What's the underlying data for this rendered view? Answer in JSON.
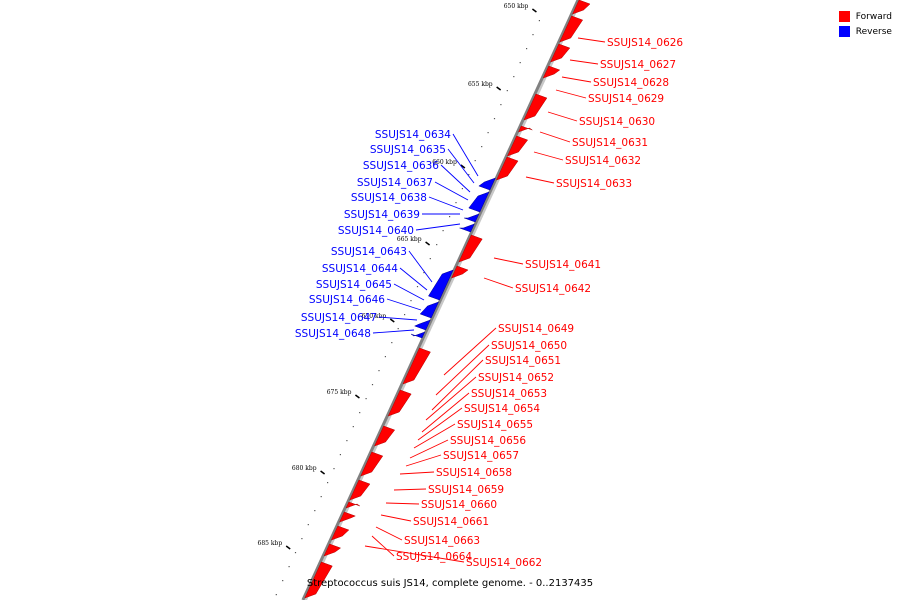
{
  "legend": [
    {
      "label": "Forward",
      "color": "#ff0000"
    },
    {
      "label": "Reverse",
      "color": "#0000ff"
    }
  ],
  "caption": "Streptococcus suis JS14, complete genome. - 0..2137435",
  "colors": {
    "forward": "#ff0000",
    "reverse": "#0000ff",
    "axis": "#808080"
  },
  "scale": {
    "ticks": [
      {
        "kbp": 650,
        "label": "650 kbp"
      },
      {
        "kbp": 655,
        "label": "655 kbp"
      },
      {
        "kbp": 660,
        "label": "660 kbp"
      },
      {
        "kbp": 665,
        "label": "665 kbp"
      },
      {
        "kbp": 670,
        "label": "670 kbp"
      },
      {
        "kbp": 675,
        "label": "675 kbp"
      },
      {
        "kbp": 680,
        "label": "680 kbp"
      },
      {
        "kbp": 685,
        "label": "685 kbp"
      }
    ]
  },
  "genes": [
    {
      "label": "SSUJS14_0626",
      "strand": "forward"
    },
    {
      "label": "SSUJS14_0627",
      "strand": "forward"
    },
    {
      "label": "SSUJS14_0628",
      "strand": "forward"
    },
    {
      "label": "SSUJS14_0629",
      "strand": "forward"
    },
    {
      "label": "SSUJS14_0630",
      "strand": "forward"
    },
    {
      "label": "SSUJS14_0631",
      "strand": "forward"
    },
    {
      "label": "SSUJS14_0632",
      "strand": "forward"
    },
    {
      "label": "SSUJS14_0633",
      "strand": "forward"
    },
    {
      "label": "SSUJS14_0634",
      "strand": "reverse"
    },
    {
      "label": "SSUJS14_0635",
      "strand": "reverse"
    },
    {
      "label": "SSUJS14_0636",
      "strand": "reverse"
    },
    {
      "label": "SSUJS14_0637",
      "strand": "reverse"
    },
    {
      "label": "SSUJS14_0638",
      "strand": "reverse"
    },
    {
      "label": "SSUJS14_0639",
      "strand": "reverse"
    },
    {
      "label": "SSUJS14_0640",
      "strand": "reverse"
    },
    {
      "label": "SSUJS14_0641",
      "strand": "forward"
    },
    {
      "label": "SSUJS14_0642",
      "strand": "forward"
    },
    {
      "label": "SSUJS14_0643",
      "strand": "reverse"
    },
    {
      "label": "SSUJS14_0644",
      "strand": "reverse"
    },
    {
      "label": "SSUJS14_0645",
      "strand": "reverse"
    },
    {
      "label": "SSUJS14_0646",
      "strand": "reverse"
    },
    {
      "label": "SSUJS14_0647",
      "strand": "reverse"
    },
    {
      "label": "SSUJS14_0648",
      "strand": "reverse"
    },
    {
      "label": "SSUJS14_0649",
      "strand": "forward"
    },
    {
      "label": "SSUJS14_0650",
      "strand": "forward"
    },
    {
      "label": "SSUJS14_0651",
      "strand": "forward"
    },
    {
      "label": "SSUJS14_0652",
      "strand": "forward"
    },
    {
      "label": "SSUJS14_0653",
      "strand": "forward"
    },
    {
      "label": "SSUJS14_0654",
      "strand": "forward"
    },
    {
      "label": "SSUJS14_0655",
      "strand": "forward"
    },
    {
      "label": "SSUJS14_0656",
      "strand": "forward"
    },
    {
      "label": "SSUJS14_0657",
      "strand": "forward"
    },
    {
      "label": "SSUJS14_0658",
      "strand": "forward"
    },
    {
      "label": "SSUJS14_0659",
      "strand": "forward"
    },
    {
      "label": "SSUJS14_0660",
      "strand": "forward"
    },
    {
      "label": "SSUJS14_0661",
      "strand": "forward"
    },
    {
      "label": "SSUJS14_0663",
      "strand": "forward"
    },
    {
      "label": "SSUJS14_0664",
      "strand": "forward"
    },
    {
      "label": "SSUJS14_0662",
      "strand": "forward"
    }
  ]
}
